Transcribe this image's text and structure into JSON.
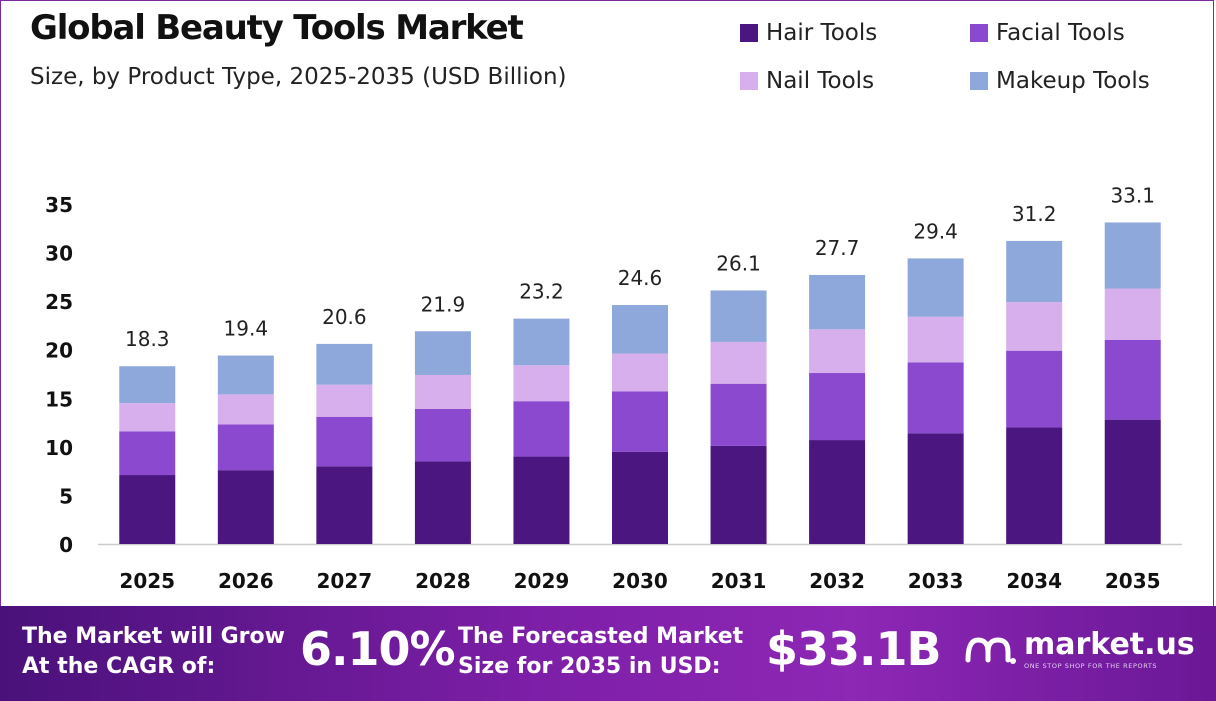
{
  "header": {
    "title": "Global Beauty Tools Market",
    "subtitle": "Size, by Product Type, 2025-2035 (USD Billion)"
  },
  "legend": [
    {
      "label": "Hair Tools",
      "color": "#4b1680"
    },
    {
      "label": "Facial Tools",
      "color": "#8a49cf"
    },
    {
      "label": "Nail Tools",
      "color": "#d7afec"
    },
    {
      "label": "Makeup Tools",
      "color": "#8fa8dc"
    }
  ],
  "chart_data": {
    "type": "bar",
    "stacked": true,
    "categories": [
      "2025",
      "2026",
      "2027",
      "2028",
      "2029",
      "2030",
      "2031",
      "2032",
      "2033",
      "2034",
      "2035"
    ],
    "series": [
      {
        "name": "Hair Tools",
        "color": "#4b1680",
        "values": [
          7.1,
          7.6,
          8.0,
          8.5,
          9.0,
          9.5,
          10.1,
          10.7,
          11.4,
          12.0,
          12.8
        ]
      },
      {
        "name": "Facial Tools",
        "color": "#8a49cf",
        "values": [
          4.5,
          4.7,
          5.1,
          5.4,
          5.7,
          6.2,
          6.4,
          6.9,
          7.3,
          7.9,
          8.2
        ]
      },
      {
        "name": "Nail Tools",
        "color": "#d7afec",
        "values": [
          2.9,
          3.1,
          3.3,
          3.5,
          3.7,
          3.9,
          4.3,
          4.5,
          4.7,
          5.0,
          5.3
        ]
      },
      {
        "name": "Makeup Tools",
        "color": "#8fa8dc",
        "values": [
          3.8,
          4.0,
          4.2,
          4.5,
          4.8,
          5.0,
          5.3,
          5.6,
          6.0,
          6.3,
          6.8
        ]
      }
    ],
    "totals": [
      "18.3",
      "19.4",
      "20.6",
      "21.9",
      "23.2",
      "24.6",
      "26.1",
      "27.7",
      "29.4",
      "31.2",
      "33.1"
    ],
    "ylim": [
      0,
      35
    ],
    "yticks": [
      0,
      5,
      10,
      15,
      20,
      25,
      30,
      35
    ],
    "grid": false,
    "legend_position": "top-right"
  },
  "banner": {
    "cagr_label_line1": "The Market will Grow",
    "cagr_label_line2": "At the CAGR of:",
    "cagr_value": "6.10%",
    "forecast_label_line1": "The Forecasted Market",
    "forecast_label_line2": "Size for 2035 in USD:",
    "forecast_value": "$33.1B",
    "logo_name": "market.us",
    "logo_tagline": "ONE STOP SHOP FOR THE REPORTS"
  }
}
